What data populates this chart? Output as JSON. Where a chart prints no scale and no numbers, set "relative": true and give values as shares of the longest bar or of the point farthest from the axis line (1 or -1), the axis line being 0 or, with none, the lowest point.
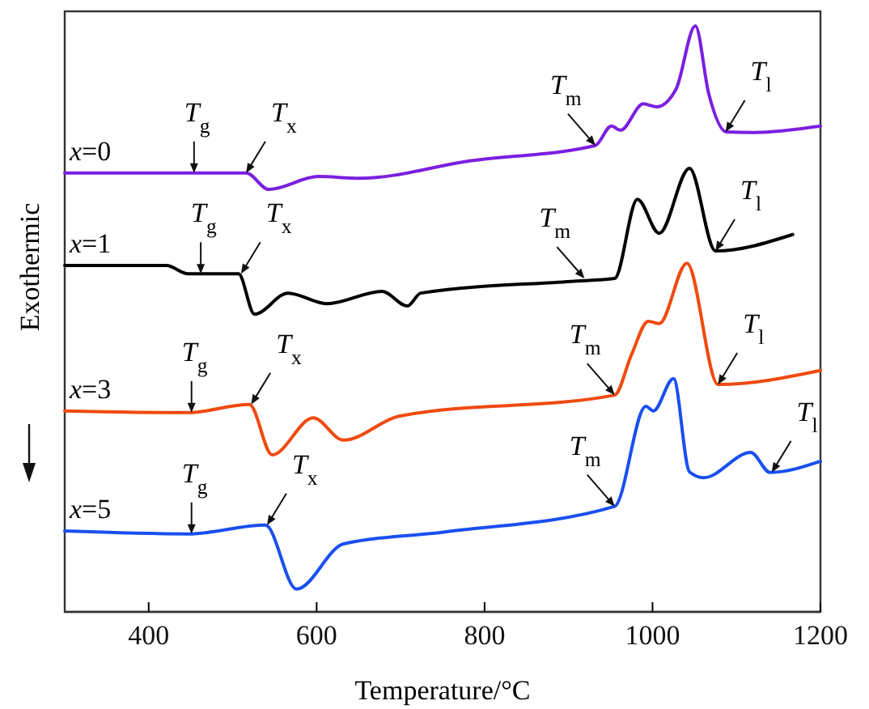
{
  "chart_data": {
    "type": "line",
    "relative": true,
    "xlabel": "Temperature/°C",
    "ylabel": "Exothermic",
    "xlim": [
      300,
      1200
    ],
    "xticks": [
      400,
      600,
      800,
      1000,
      1200
    ],
    "grid": false,
    "marker": "none",
    "line_style": "solid",
    "series": [
      {
        "name": "x=0",
        "color": "#7b1fe0",
        "x": [
          300,
          450,
          516,
          543,
          602,
          651,
          784,
          932,
          951,
          962,
          989,
          1005,
          1028,
          1051,
          1067,
          1088,
          1121,
          1200
        ],
        "values": [
          0.749,
          0.749,
          0.749,
          0.721,
          0.743,
          0.74,
          0.77,
          0.796,
          0.829,
          0.822,
          0.867,
          0.862,
          0.892,
          1,
          0.884,
          0.819,
          0.818,
          0.829
        ]
      },
      {
        "name": "x=1",
        "color": "#000000",
        "x": [
          300,
          421,
          447,
          507,
          526,
          566,
          612,
          678,
          708,
          724,
          903,
          955,
          982,
          1008,
          1044,
          1075,
          1167
        ],
        "values": [
          0.591,
          0.591,
          0.577,
          0.577,
          0.508,
          0.544,
          0.526,
          0.547,
          0.522,
          0.544,
          0.564,
          0.569,
          0.704,
          0.646,
          0.757,
          0.616,
          0.644
        ]
      },
      {
        "name": "x=3",
        "color": "#f04a10",
        "x": [
          300,
          447,
          520,
          547,
          596,
          632,
          698,
          955,
          975,
          995,
          1008,
          1041,
          1078,
          1200
        ],
        "values": [
          0.343,
          0.34,
          0.354,
          0.268,
          0.331,
          0.293,
          0.334,
          0.37,
          0.439,
          0.496,
          0.492,
          0.595,
          0.388,
          0.412
        ]
      },
      {
        "name": "x=5",
        "color": "#1a4ff0",
        "x": [
          300,
          447,
          539,
          576,
          632,
          751,
          955,
          992,
          1001,
          1025,
          1044,
          1061,
          1117,
          1140,
          1200
        ],
        "values": [
          0.138,
          0.133,
          0.148,
          0.039,
          0.116,
          0.136,
          0.18,
          0.351,
          0.343,
          0.398,
          0.239,
          0.229,
          0.272,
          0.238,
          0.257
        ]
      }
    ],
    "annotations": [
      {
        "text": "T$_{g}$",
        "x": 454,
        "y": 0.749
      },
      {
        "text": "T$_{x}$",
        "x": 516,
        "y": 0.749
      },
      {
        "text": "T$_{m}$",
        "x": 932,
        "y": 0.796
      },
      {
        "text": "T$_{l}$",
        "x": 1087,
        "y": 0.819
      },
      {
        "text": "T$_{g}$",
        "x": 462,
        "y": 0.577
      },
      {
        "text": "T$_{x}$",
        "x": 510,
        "y": 0.577
      },
      {
        "text": "T$_{m}$",
        "x": 919,
        "y": 0.569
      },
      {
        "text": "T$_{l}$",
        "x": 1075,
        "y": 0.616
      },
      {
        "text": "T$_{g}$",
        "x": 451,
        "y": 0.34
      },
      {
        "text": "T$_{x}$",
        "x": 522,
        "y": 0.354
      },
      {
        "text": "T$_{m}$",
        "x": 955,
        "y": 0.37
      },
      {
        "text": "T$_{l}$",
        "x": 1078,
        "y": 0.388
      },
      {
        "text": "T$_{g}$",
        "x": 451,
        "y": 0.133
      },
      {
        "text": "T$_{x}$",
        "x": 541,
        "y": 0.148
      },
      {
        "text": "T$_{m}$",
        "x": 955,
        "y": 0.18
      },
      {
        "text": "T$_{l}$",
        "x": 1142,
        "y": 0.238
      }
    ]
  }
}
